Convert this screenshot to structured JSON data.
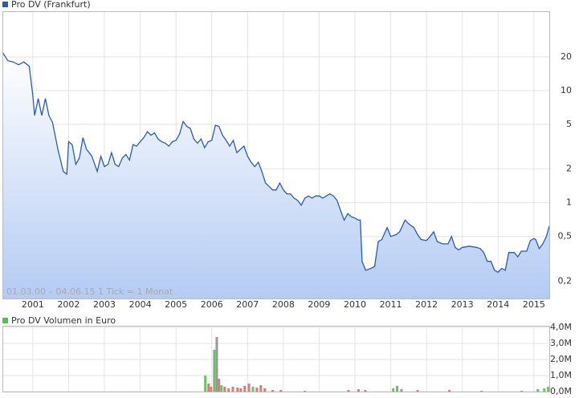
{
  "chart_data": [
    {
      "type": "line",
      "title": "Pro DV (Frankfurt)",
      "annotation": "01.03.00 – 04.06.15   1 Tick = 1 Monat",
      "color": "#2a5db0",
      "log_scale": true,
      "grid": true,
      "x": [
        2000.15,
        2000.3,
        2000.45,
        2000.6,
        2000.75,
        2000.9,
        2001.0,
        2001.05,
        2001.15,
        2001.25,
        2001.35,
        2001.45,
        2001.55,
        2001.7,
        2001.85,
        2001.95,
        2002.0,
        2002.1,
        2002.2,
        2002.3,
        2002.4,
        2002.5,
        2002.65,
        2002.8,
        2002.9,
        2003.0,
        2003.1,
        2003.2,
        2003.3,
        2003.4,
        2003.5,
        2003.6,
        2003.7,
        2003.8,
        2003.9,
        2004.0,
        2004.1,
        2004.2,
        2004.3,
        2004.4,
        2004.5,
        2004.6,
        2004.7,
        2004.8,
        2004.9,
        2005.0,
        2005.1,
        2005.2,
        2005.3,
        2005.4,
        2005.5,
        2005.6,
        2005.7,
        2005.8,
        2005.9,
        2006.0,
        2006.1,
        2006.2,
        2006.3,
        2006.4,
        2006.5,
        2006.6,
        2006.7,
        2006.8,
        2006.9,
        2007.0,
        2007.1,
        2007.2,
        2007.3,
        2007.4,
        2007.5,
        2007.6,
        2007.7,
        2007.8,
        2007.9,
        2008.0,
        2008.1,
        2008.2,
        2008.3,
        2008.4,
        2008.5,
        2008.6,
        2008.7,
        2008.8,
        2008.9,
        2009.0,
        2009.1,
        2009.2,
        2009.3,
        2009.4,
        2009.5,
        2009.6,
        2009.7,
        2009.8,
        2009.9,
        2010.0,
        2010.1,
        2010.15,
        2010.2,
        2010.3,
        2010.45,
        2010.55,
        2010.65,
        2010.75,
        2010.9,
        2011.0,
        2011.15,
        2011.25,
        2011.4,
        2011.5,
        2011.65,
        2011.75,
        2011.85,
        2012.0,
        2012.1,
        2012.2,
        2012.3,
        2012.45,
        2012.6,
        2012.7,
        2012.8,
        2012.9,
        2013.0,
        2013.2,
        2013.4,
        2013.5,
        2013.6,
        2013.7,
        2013.8,
        2013.9,
        2014.0,
        2014.1,
        2014.2,
        2014.3,
        2014.45,
        2014.55,
        2014.65,
        2014.8,
        2014.9,
        2015.0,
        2015.05,
        2015.15,
        2015.25,
        2015.35,
        2015.43
      ],
      "values": [
        22,
        18.5,
        18,
        17,
        18,
        16.5,
        9,
        6,
        8.5,
        6,
        8.5,
        6,
        5.2,
        3,
        1.9,
        1.8,
        3.5,
        3.3,
        2.2,
        2.5,
        3.8,
        3,
        2.6,
        1.9,
        2.6,
        2.1,
        2.2,
        2.8,
        2.2,
        2.1,
        2.5,
        2.7,
        2.4,
        3.3,
        3.2,
        3.5,
        3.8,
        4.3,
        4,
        4.2,
        3.7,
        3.5,
        3.4,
        3.2,
        3.5,
        3.6,
        4.1,
        5.3,
        4.8,
        4.6,
        3.7,
        3.4,
        3.7,
        3.1,
        3.5,
        3.6,
        4.9,
        4.8,
        4,
        3.6,
        3.2,
        3.6,
        2.8,
        3,
        3.2,
        2.6,
        2.3,
        2.1,
        2.3,
        1.9,
        1.5,
        1.4,
        1.3,
        1.3,
        1.5,
        1.3,
        1.2,
        1.2,
        1.1,
        1.05,
        0.95,
        1.1,
        1.15,
        1.1,
        1.15,
        1.15,
        1.1,
        1.15,
        1.2,
        1.15,
        1.05,
        0.85,
        0.7,
        0.8,
        0.75,
        0.73,
        0.7,
        0.7,
        0.3,
        0.25,
        0.26,
        0.27,
        0.45,
        0.47,
        0.6,
        0.5,
        0.52,
        0.55,
        0.7,
        0.65,
        0.6,
        0.52,
        0.47,
        0.46,
        0.5,
        0.55,
        0.45,
        0.43,
        0.43,
        0.5,
        0.4,
        0.38,
        0.4,
        0.41,
        0.4,
        0.39,
        0.36,
        0.3,
        0.3,
        0.25,
        0.24,
        0.26,
        0.25,
        0.36,
        0.36,
        0.33,
        0.37,
        0.37,
        0.46,
        0.48,
        0.47,
        0.39,
        0.43,
        0.5,
        0.62
      ],
      "xlim": [
        2000.15,
        2015.43
      ],
      "ylim": [
        0.14,
        51
      ],
      "xticks": [
        2001,
        2002,
        2003,
        2004,
        2005,
        2006,
        2007,
        2008,
        2009,
        2010,
        2011,
        2012,
        2013,
        2014,
        2015
      ],
      "yticks": [
        {
          "value": 0.2,
          "label": "0,2"
        },
        {
          "value": 0.5,
          "label": "0,5"
        },
        1,
        2,
        5,
        10,
        20
      ]
    },
    {
      "type": "bar",
      "title": "Pro DV Volumen in Euro",
      "color": "#5cb85c",
      "grid": true,
      "x": [
        2005.82,
        2005.91,
        2005.98,
        2006.07,
        2006.14,
        2006.2,
        2006.27,
        2006.36,
        2006.47,
        2006.59,
        2006.72,
        2006.81,
        2006.92,
        2007.04,
        2007.15,
        2007.26,
        2007.37,
        2007.48,
        2007.7,
        2007.93,
        2008.6,
        2009.82,
        2010.1,
        2010.29,
        2011.07,
        2011.18,
        2011.3,
        2011.75,
        2012.64,
        2013.54,
        2014.66,
        2015.11,
        2015.29,
        2015.4
      ],
      "values": [
        1000000,
        500000,
        300000,
        2600000,
        3400000,
        800000,
        400000,
        300000,
        200000,
        300000,
        250000,
        200000,
        350000,
        500000,
        300000,
        250000,
        400000,
        200000,
        100000,
        100000,
        50000,
        100000,
        150000,
        100000,
        200000,
        350000,
        150000,
        100000,
        100000,
        50000,
        50000,
        150000,
        200000,
        300000
      ],
      "colors": [
        "#66c466",
        "#e07a7a",
        "#e07a7a",
        "#66c466",
        "#999999",
        "#e07a7a",
        "#66c466",
        "#e07a7a",
        "#e07a7a",
        "#e07a7a",
        "#e07a7a",
        "#e07a7a",
        "#e07a7a",
        "#e07a7a",
        "#66c466",
        "#e07a7a",
        "#e07a7a",
        "#e07a7a",
        "#e07a7a",
        "#e07a7a",
        "#e07a7a",
        "#e07a7a",
        "#e07a7a",
        "#e07a7a",
        "#66c466",
        "#66c466",
        "#e07a7a",
        "#e07a7a",
        "#e07a7a",
        "#e07a7a",
        "#66c466",
        "#66c466",
        "#66c466",
        "#66c466"
      ],
      "xlim": [
        2000.15,
        2015.43
      ],
      "ylim": [
        0,
        4000000
      ],
      "yticks": [
        {
          "value": 0,
          "label": "0,0M"
        },
        {
          "value": 1000000,
          "label": "1,0M"
        },
        {
          "value": 2000000,
          "label": "2,0M"
        },
        {
          "value": 3000000,
          "label": "3,0M"
        },
        {
          "value": 4000000,
          "label": "4,0M"
        }
      ]
    }
  ]
}
